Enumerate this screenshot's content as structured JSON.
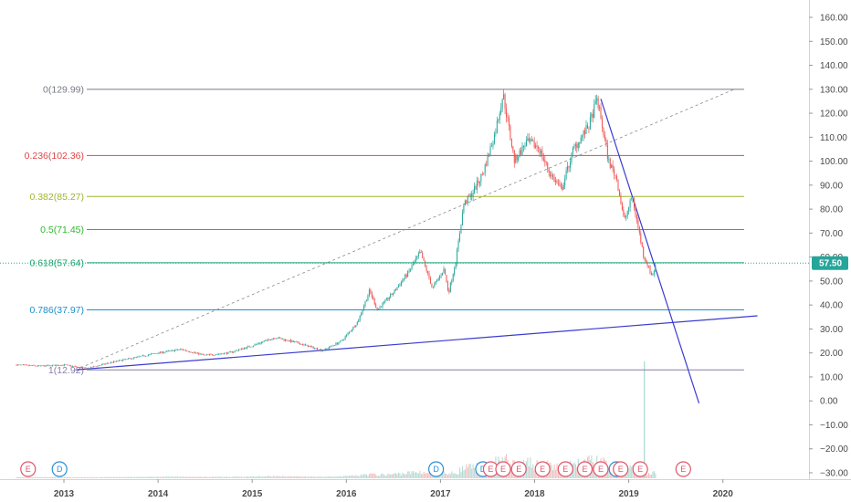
{
  "chart_data": {
    "type": "candlestick",
    "x_ticks": [
      "2013",
      "2014",
      "2015",
      "2016",
      "2017",
      "2018",
      "2019",
      "2020"
    ],
    "y_ticks": [
      "160.00",
      "150.00",
      "140.00",
      "130.00",
      "120.00",
      "110.00",
      "100.00",
      "90.00",
      "80.00",
      "70.00",
      "60.00",
      "50.00",
      "40.00",
      "30.00",
      "20.00",
      "10.00",
      "0.00",
      "−10.00",
      "−20.00",
      "−30.00"
    ],
    "ylim": [
      -32,
      167
    ],
    "current_price": {
      "label": "57.50",
      "value": 57.5,
      "color": "#26a69a"
    },
    "fib_levels": [
      {
        "label": "0(129.99)",
        "value": 129.99,
        "color": "#787b86"
      },
      {
        "label": "0.236(102.36)",
        "value": 102.36,
        "color": "#e04545"
      },
      {
        "label": "0.382(85.27)",
        "value": 85.27,
        "color": "#a0b62c"
      },
      {
        "label": "0.5(71.45)",
        "value": 71.45,
        "color": "#2eb82e"
      },
      {
        "label": "0.618(57.64)",
        "value": 57.64,
        "color": "#10a36a"
      },
      {
        "label": "0.786(37.97)",
        "value": 37.97,
        "color": "#1e90c8"
      },
      {
        "label": "1(12.92)",
        "value": 12.92,
        "color": "#8c7fa6"
      }
    ],
    "price_path": [
      [
        "2012-07-01",
        15
      ],
      [
        "2012-10-01",
        14.5
      ],
      [
        "2013-01-01",
        15
      ],
      [
        "2013-04-01",
        13.5
      ],
      [
        "2013-07-01",
        16
      ],
      [
        "2013-10-01",
        18
      ],
      [
        "2014-01-01",
        20
      ],
      [
        "2014-04-01",
        21.5
      ],
      [
        "2014-07-01",
        19
      ],
      [
        "2014-10-01",
        20
      ],
      [
        "2015-01-01",
        23
      ],
      [
        "2015-04-01",
        26.5
      ],
      [
        "2015-07-01",
        24
      ],
      [
        "2015-10-01",
        21
      ],
      [
        "2015-12-15",
        25
      ],
      [
        "2016-02-15",
        33
      ],
      [
        "2016-04-01",
        46
      ],
      [
        "2016-05-01",
        38
      ],
      [
        "2016-07-01",
        45
      ],
      [
        "2016-09-01",
        54
      ],
      [
        "2016-10-15",
        62
      ],
      [
        "2016-12-01",
        47
      ],
      [
        "2017-01-15",
        55
      ],
      [
        "2017-02-01",
        45
      ],
      [
        "2017-03-01",
        58
      ],
      [
        "2017-04-01",
        82
      ],
      [
        "2017-05-01",
        86
      ],
      [
        "2017-06-15",
        95
      ],
      [
        "2017-08-01",
        112
      ],
      [
        "2017-09-01",
        128
      ],
      [
        "2017-10-15",
        100
      ],
      [
        "2017-12-01",
        108
      ],
      [
        "2018-01-15",
        106
      ],
      [
        "2018-03-01",
        95
      ],
      [
        "2018-04-15",
        88
      ],
      [
        "2018-06-01",
        105
      ],
      [
        "2018-08-01",
        115
      ],
      [
        "2018-09-01",
        126
      ],
      [
        "2018-10-15",
        100
      ],
      [
        "2018-11-15",
        93
      ],
      [
        "2018-12-15",
        75
      ],
      [
        "2019-01-15",
        85
      ],
      [
        "2019-02-15",
        68
      ],
      [
        "2019-03-01",
        60
      ],
      [
        "2019-03-15",
        57
      ],
      [
        "2019-04-01",
        52
      ],
      [
        "2019-04-15",
        56
      ]
    ],
    "trendlines": [
      {
        "start": [
          "2013-02-15",
          12.92
        ],
        "end": [
          "2020-05-15",
          35.5
        ],
        "color": "#3b3bd0",
        "style": "solid"
      },
      {
        "start": [
          "2018-09-15",
          126
        ],
        "end": [
          "2019-10-01",
          -1
        ],
        "color": "#3b3bd0",
        "style": "solid"
      },
      {
        "start": [
          "2013-02-15",
          12.92
        ],
        "end": [
          "2020-02-15",
          130
        ],
        "color": "#8a8a8a",
        "style": "dashed"
      }
    ],
    "event_markers": [
      {
        "label": "E",
        "date": "2012-08-15",
        "color": "#e0556b"
      },
      {
        "label": "D",
        "date": "2012-12-15",
        "color": "#2a8fd3"
      },
      {
        "label": "D",
        "date": "2016-12-15",
        "color": "#2a8fd3"
      },
      {
        "label": "D",
        "date": "2017-06-15",
        "color": "#2a8fd3"
      },
      {
        "label": "E",
        "date": "2017-07-15",
        "color": "#e0556b"
      },
      {
        "label": "E",
        "date": "2017-09-01",
        "color": "#e0556b"
      },
      {
        "label": "E",
        "date": "2017-11-01",
        "color": "#e0556b"
      },
      {
        "label": "E",
        "date": "2018-02-01",
        "color": "#e0556b"
      },
      {
        "label": "E",
        "date": "2018-05-01",
        "color": "#e0556b"
      },
      {
        "label": "E",
        "date": "2018-07-15",
        "color": "#e0556b"
      },
      {
        "label": "E",
        "date": "2018-09-15",
        "color": "#e0556b"
      },
      {
        "label": "D",
        "date": "2018-11-15",
        "color": "#2a8fd3"
      },
      {
        "label": "E",
        "date": "2018-12-01",
        "color": "#e0556b"
      },
      {
        "label": "E",
        "date": "2019-02-15",
        "color": "#e0556b"
      },
      {
        "label": "E",
        "date": "2019-08-01",
        "color": "#e0556b"
      }
    ]
  }
}
